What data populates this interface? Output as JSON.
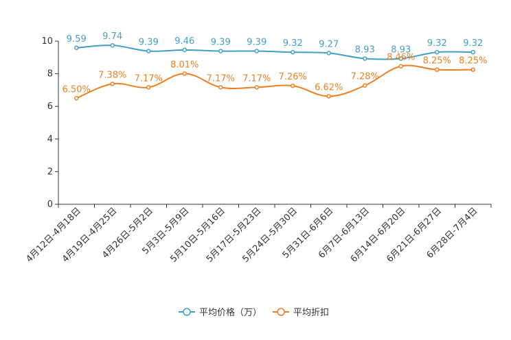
{
  "chart_data": {
    "type": "line",
    "title": "",
    "xlabel": "",
    "ylabel": "",
    "ylim": [
      0,
      10
    ],
    "yticks": [
      "0",
      "2",
      "4",
      "6",
      "8",
      "10"
    ],
    "categories": [
      "4月12日-4月18日",
      "4月19日-4月25日",
      "4月26日-5月2日",
      "5月3日-5月9日",
      "5月10日-5月16日",
      "5月17日-5月23日",
      "5月24日-5月30日",
      "5月31日-6月6日",
      "6月7日-6月13日",
      "6月14日-6月20日",
      "6月21日-6月27日",
      "6月28日-7月4日"
    ],
    "series": [
      {
        "name": "平均价格（万）",
        "color": "#3f9fc8",
        "values": [
          9.59,
          9.74,
          9.39,
          9.46,
          9.39,
          9.39,
          9.32,
          9.27,
          8.93,
          8.93,
          9.32,
          9.32
        ],
        "labels": [
          "9.59",
          "9.74",
          "9.39",
          "9.46",
          "9.39",
          "9.39",
          "9.32",
          "9.27",
          "8.93",
          "8.93",
          "9.32",
          "9.32"
        ]
      },
      {
        "name": "平均折扣",
        "color": "#f07e1e",
        "values": [
          6.5,
          7.38,
          7.17,
          8.01,
          7.17,
          7.17,
          7.26,
          6.62,
          7.28,
          8.46,
          8.25,
          8.25
        ],
        "labels": [
          "6.50%",
          "7.38%",
          "7.17%",
          "8.01%",
          "7.17%",
          "7.17%",
          "7.26%",
          "6.62%",
          "7.28%",
          "8.46%",
          "8.25%",
          "8.25%"
        ]
      }
    ],
    "grid": false,
    "legend_position": "bottom-center"
  }
}
